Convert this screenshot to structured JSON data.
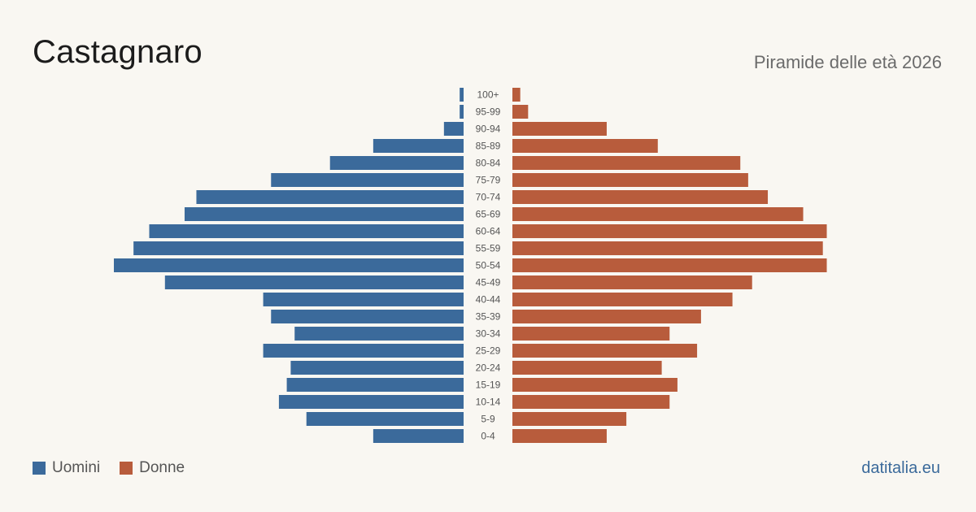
{
  "header": {
    "title": "Castagnaro",
    "subtitle": "Piramide delle età 2026"
  },
  "legend": {
    "men_label": "Uomini",
    "women_label": "Donne"
  },
  "source": "datitalia.eu",
  "colors": {
    "men": "#3b6a9b",
    "women": "#b85c3c",
    "background": "#f9f7f2",
    "label": "#555555"
  },
  "chart_data": {
    "type": "bar",
    "orientation": "horizontal-pyramid",
    "categories": [
      "100+",
      "95-99",
      "90-94",
      "85-89",
      "80-84",
      "75-79",
      "70-74",
      "65-69",
      "60-64",
      "55-59",
      "50-54",
      "45-49",
      "40-44",
      "35-39",
      "30-34",
      "25-29",
      "20-24",
      "15-19",
      "10-14",
      "5-9",
      "0-4"
    ],
    "series": [
      {
        "name": "Uomini",
        "values": [
          1,
          1,
          5,
          23,
          34,
          49,
          68,
          71,
          80,
          84,
          89,
          76,
          51,
          49,
          43,
          51,
          44,
          45,
          47,
          40,
          23
        ]
      },
      {
        "name": "Donne",
        "values": [
          2,
          4,
          24,
          37,
          58,
          60,
          65,
          74,
          80,
          79,
          80,
          61,
          56,
          48,
          40,
          47,
          38,
          42,
          40,
          29,
          24
        ]
      }
    ],
    "title": "Castagnaro",
    "subtitle": "Piramide delle età 2026",
    "legend_position": "bottom-left",
    "grid": false
  }
}
